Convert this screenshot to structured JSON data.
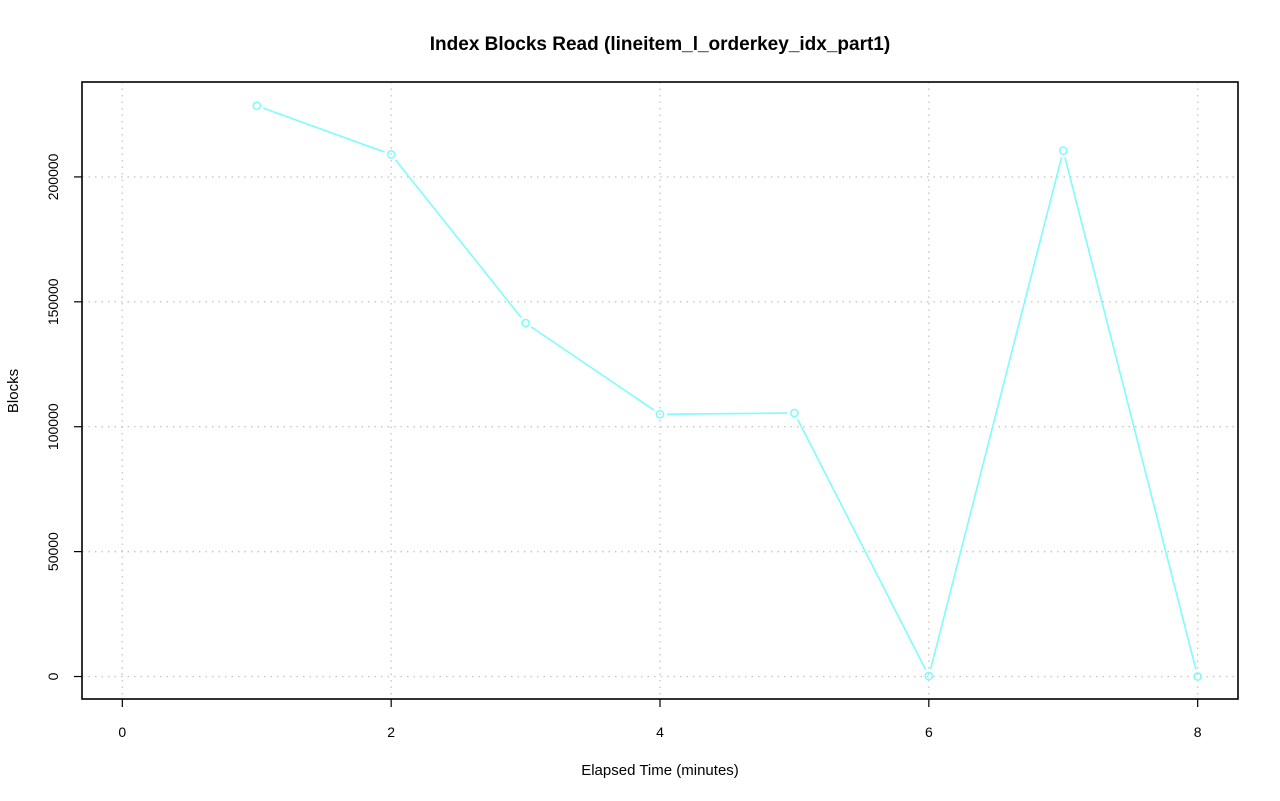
{
  "chart_data": {
    "type": "line",
    "title": "Index Blocks Read (lineitem_l_orderkey_idx_part1)",
    "xlabel": "Elapsed Time (minutes)",
    "ylabel": "Blocks",
    "xlim": [
      -0.3,
      8.3
    ],
    "ylim": [
      -9000,
      238000
    ],
    "x_ticks": [
      0,
      2,
      4,
      6,
      8
    ],
    "y_ticks": [
      0,
      50000,
      100000,
      150000,
      200000
    ],
    "x_tick_labels": [
      "0",
      "2",
      "4",
      "6",
      "8"
    ],
    "y_tick_labels": [
      "0",
      "50000",
      "100000",
      "150000",
      "200000"
    ],
    "grid": true,
    "series": [
      {
        "color": "#7ffcfc",
        "x": [
          1,
          2,
          3,
          4,
          5,
          6,
          7,
          8
        ],
        "values": [
          228500,
          209000,
          141500,
          105000,
          105500,
          200,
          210500,
          0
        ]
      }
    ]
  }
}
